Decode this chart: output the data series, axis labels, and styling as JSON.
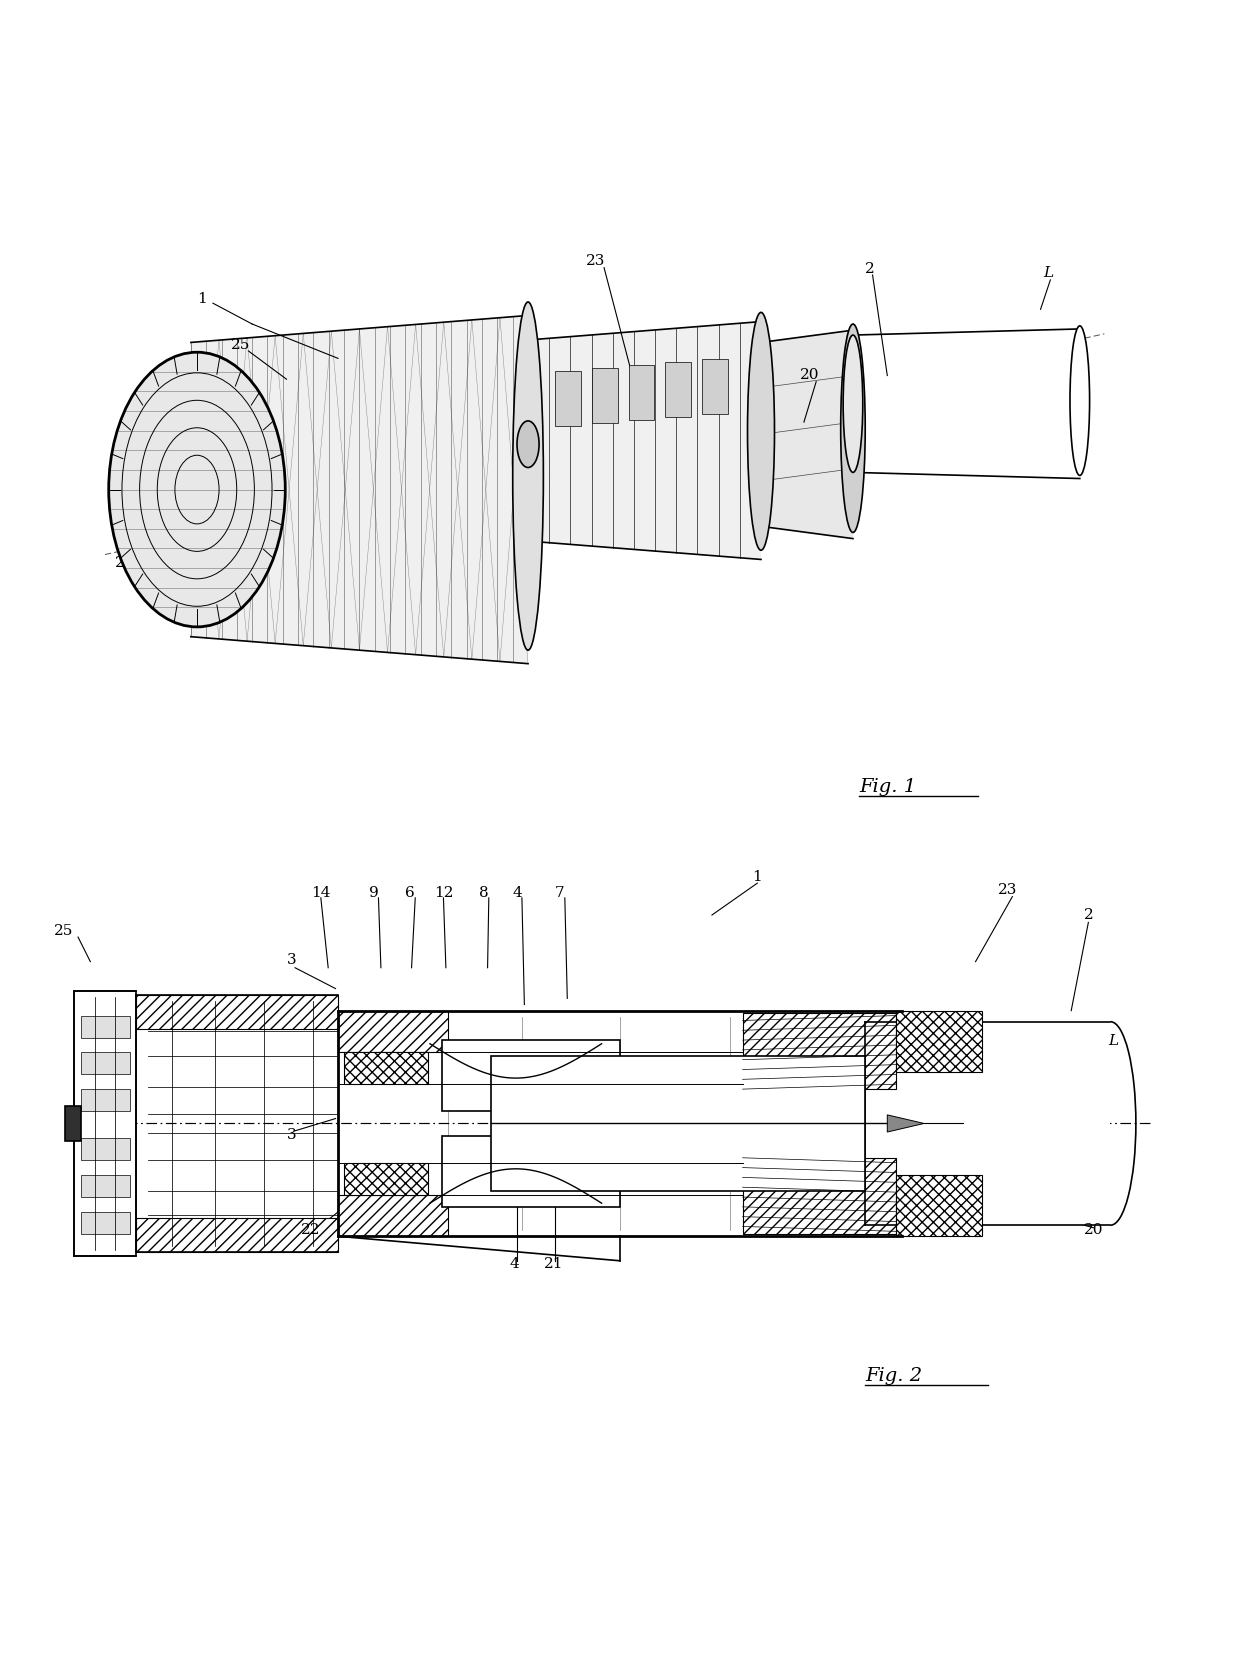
{
  "bg_color": "#ffffff",
  "line_color": "#000000",
  "fig_width": 12.4,
  "fig_height": 16.78,
  "fig1_caption": "Fig. 1",
  "fig2_caption": "Fig. 2"
}
